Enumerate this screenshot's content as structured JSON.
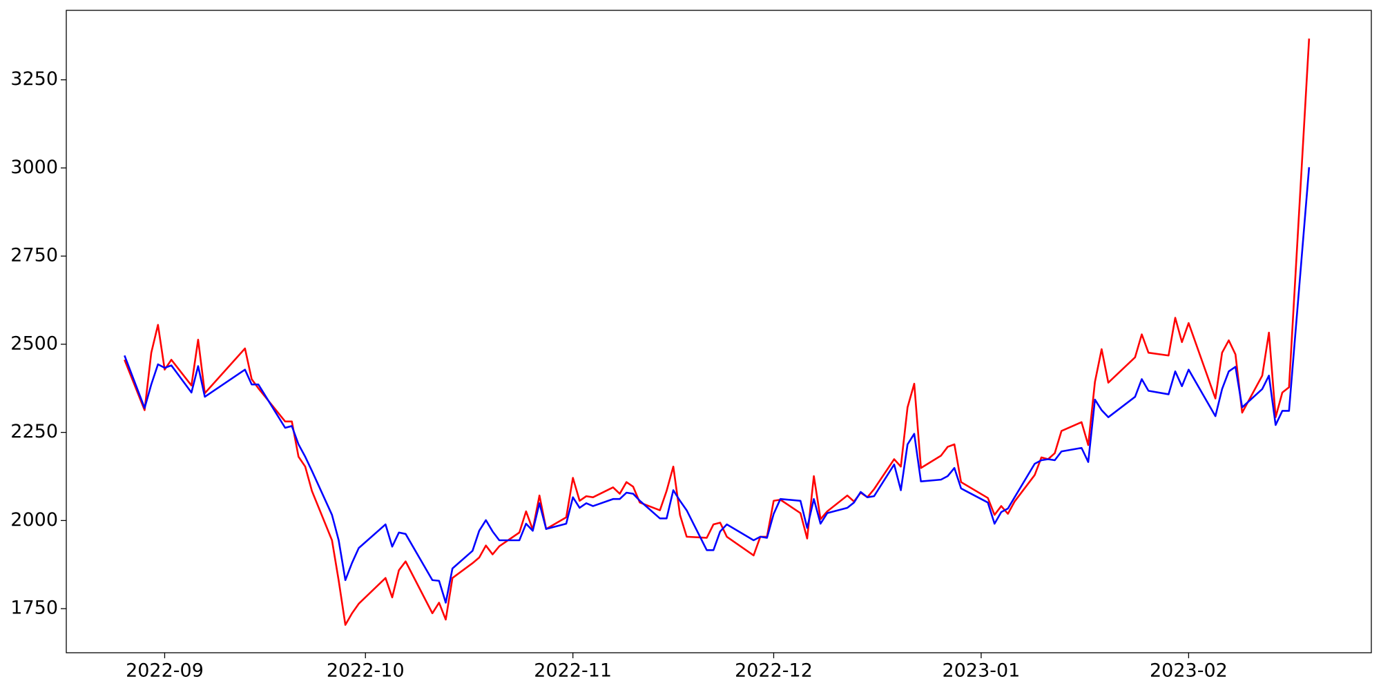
{
  "chart_data": {
    "type": "line",
    "x": [
      -6,
      -3,
      -2,
      -1,
      0,
      1,
      4,
      5,
      6,
      12,
      13,
      14,
      18,
      19,
      20,
      21,
      22,
      25,
      26,
      27,
      28,
      29,
      33,
      34,
      35,
      36,
      40,
      41,
      42,
      43,
      46,
      47,
      48,
      49,
      50,
      53,
      54,
      55,
      56,
      57,
      60,
      61,
      62,
      63,
      64,
      67,
      68,
      69,
      70,
      71,
      74,
      75,
      76,
      77,
      78,
      81,
      82,
      83,
      84,
      88,
      89,
      90,
      91,
      92,
      95,
      96,
      97,
      98,
      99,
      102,
      103,
      104,
      105,
      106,
      109,
      110,
      111,
      112,
      113,
      116,
      117,
      118,
      119,
      123,
      124,
      125,
      126,
      127,
      130,
      131,
      132,
      133,
      134,
      137,
      138,
      139,
      140,
      141,
      145,
      146,
      147,
      150,
      151,
      152,
      153,
      157,
      158,
      159,
      160,
      161,
      164,
      165,
      166,
      167,
      168,
      171
    ],
    "series": [
      {
        "color": "red",
        "values": [
          2456,
          2313,
          2476,
          2555,
          2428,
          2456,
          2383,
          2513,
          2361,
          2488,
          2401,
          2375,
          2281,
          2281,
          2181,
          2153,
          2084,
          1944,
          1830,
          1704,
          1737,
          1764,
          1837,
          1782,
          1859,
          1884,
          1737,
          1767,
          1719,
          1837,
          1879,
          1895,
          1929,
          1904,
          1927,
          1966,
          2026,
          1974,
          2071,
          1976,
          2009,
          2121,
          2056,
          2069,
          2066,
          2094,
          2076,
          2109,
          2096,
          2051,
          2029,
          2084,
          2153,
          2016,
          1954,
          1951,
          1989,
          1994,
          1954,
          1901,
          1954,
          1954,
          2056,
          2059,
          2021,
          1949,
          2126,
          2004,
          2026,
          2071,
          2054,
          2079,
          2066,
          2089,
          2174,
          2153,
          2321,
          2388,
          2149,
          2184,
          2209,
          2216,
          2109,
          2064,
          2016,
          2041,
          2019,
          2054,
          2129,
          2179,
          2174,
          2191,
          2254,
          2279,
          2214,
          2393,
          2486,
          2391,
          2463,
          2528,
          2476,
          2468,
          2575,
          2506,
          2560,
          2346,
          2476,
          2511,
          2471,
          2306,
          2411,
          2533,
          2293,
          2363,
          2378,
          3367
        ]
      },
      {
        "color": "blue",
        "values": [
          2468,
          2319,
          2386,
          2443,
          2433,
          2440,
          2363,
          2438,
          2351,
          2428,
          2386,
          2386,
          2263,
          2268,
          2216,
          2181,
          2141,
          2016,
          1944,
          1831,
          1880,
          1922,
          1989,
          1926,
          1966,
          1962,
          1831,
          1829,
          1767,
          1864,
          1914,
          1971,
          2001,
          1969,
          1944,
          1944,
          1991,
          1971,
          2049,
          1976,
          1991,
          2066,
          2036,
          2049,
          2041,
          2061,
          2061,
          2079,
          2076,
          2056,
          2006,
          2006,
          2086,
          2056,
          2029,
          1916,
          1916,
          1969,
          1989,
          1944,
          1954,
          1951,
          2019,
          2061,
          2056,
          1979,
          2061,
          1991,
          2021,
          2036,
          2051,
          2081,
          2066,
          2069,
          2159,
          2086,
          2216,
          2246,
          2111,
          2116,
          2126,
          2149,
          2091,
          2051,
          1991,
          2024,
          2034,
          2066,
          2161,
          2171,
          2174,
          2171,
          2196,
          2206,
          2166,
          2343,
          2313,
          2293,
          2351,
          2401,
          2368,
          2358,
          2423,
          2381,
          2428,
          2296,
          2373,
          2423,
          2436,
          2321,
          2373,
          2411,
          2271,
          2311,
          2311,
          3002
        ]
      }
    ],
    "xlim": [
      -14.7,
      180.3
    ],
    "xticks": [
      {
        "value": 0,
        "label": "2022-09"
      },
      {
        "value": 30,
        "label": "2022-10"
      },
      {
        "value": 61,
        "label": "2022-11"
      },
      {
        "value": 91,
        "label": "2022-12"
      },
      {
        "value": 122,
        "label": "2023-01"
      },
      {
        "value": 153,
        "label": "2023-02"
      }
    ],
    "ylim": [
      1625,
      3447
    ],
    "yticks": [
      1750,
      2000,
      2250,
      2500,
      2750,
      3000,
      3250
    ],
    "grid": false
  }
}
